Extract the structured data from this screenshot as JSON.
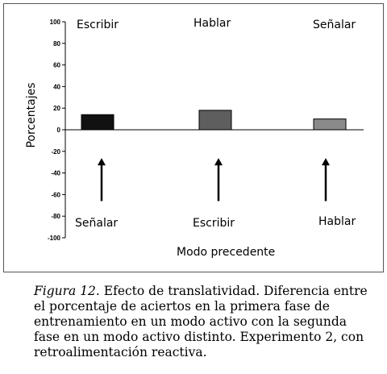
{
  "chart_data": {
    "type": "bar",
    "categories": [
      "Escribir",
      "Hablar",
      "Señalar"
    ],
    "preceding_modes": [
      "Señalar",
      "Escribir",
      "Hablar"
    ],
    "values": [
      14,
      18,
      10
    ],
    "bar_colors": [
      "#111111",
      "#5e5e5e",
      "#8a8a8a"
    ],
    "ylabel": "Porcentajes",
    "xlabel": "Modo precedente",
    "ylim": [
      -100,
      100
    ],
    "yticks": [
      "100",
      "80",
      "60",
      "40",
      "20",
      "0",
      "-20",
      "-40",
      "-60",
      "-80",
      "-100"
    ],
    "grid": false
  },
  "caption": {
    "figure_label": "Figura 12",
    "text": ". Efecto de translatividad. Diferencia entre el porcentaje de aciertos en la primera fase de entrenamiento en un modo activo con la segunda fase en un modo activo distinto. Experimento 2, con retroalimentación reactiva."
  }
}
